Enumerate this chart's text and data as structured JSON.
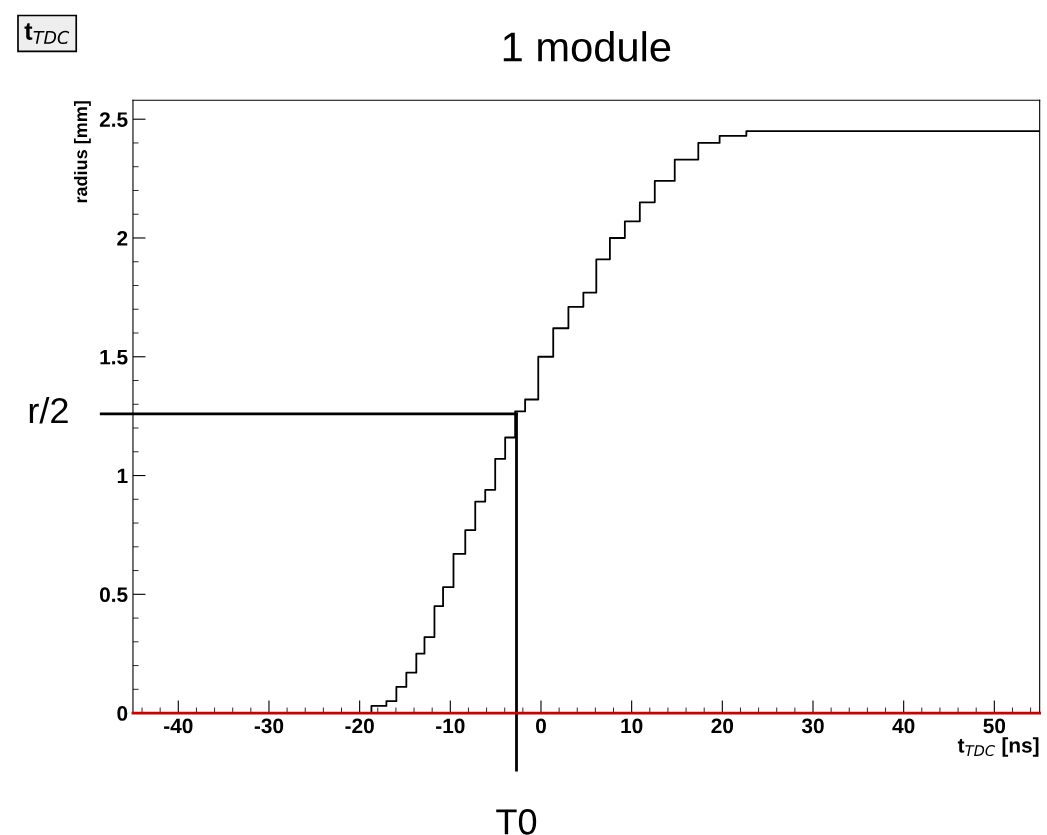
{
  "chart_data": {
    "type": "step",
    "title": "1 module",
    "xlabel": "t$_{TDC}$ [ns]",
    "ylabel": "radius [mm]",
    "annotations": [
      "t$_{TDC}$"
    ],
    "x": [
      -45,
      -19.6,
      -17.8,
      -16.3,
      -15.6,
      -14.1,
      -13.4,
      -12.3,
      -11.2,
      -10.4,
      -8.9,
      -7.8,
      -6.7,
      -5.6,
      -4.5,
      -3.4,
      -2.3,
      -1.2,
      0.6,
      2.1,
      3.95,
      5.4,
      6.8,
      8.4,
      10.1,
      11.7,
      13.4,
      16.1,
      18.6,
      20.8,
      24.5,
      55
    ],
    "series": [
      {
        "color": "#000000",
        "values": [
          0,
          0,
          0.03,
          0.05,
          0.11,
          0.17,
          0.25,
          0.32,
          0.45,
          0.53,
          0.67,
          0.77,
          0.89,
          0.94,
          1.07,
          1.16,
          1.27,
          1.32,
          1.5,
          1.62,
          1.71,
          1.77,
          1.91,
          2.0,
          2.07,
          2.15,
          2.24,
          2.33,
          2.4,
          2.43,
          2.45,
          2.45
        ]
      }
    ],
    "xlim": [
      -45,
      55
    ],
    "ylim": [
      0,
      2.58
    ],
    "xticks": [
      -40,
      -30,
      -20,
      -10,
      0,
      10,
      20,
      30,
      40,
      50
    ],
    "yticks": [
      0,
      0.5,
      1,
      1.5,
      2,
      2.5
    ],
    "ref_lines": [
      {
        "axis": "y",
        "value": 1.26,
        "label": "r/2",
        "color": "#000000"
      },
      {
        "axis": "x",
        "value": -2.7,
        "label": "T0",
        "color": "#000000"
      }
    ],
    "grid": false
  }
}
